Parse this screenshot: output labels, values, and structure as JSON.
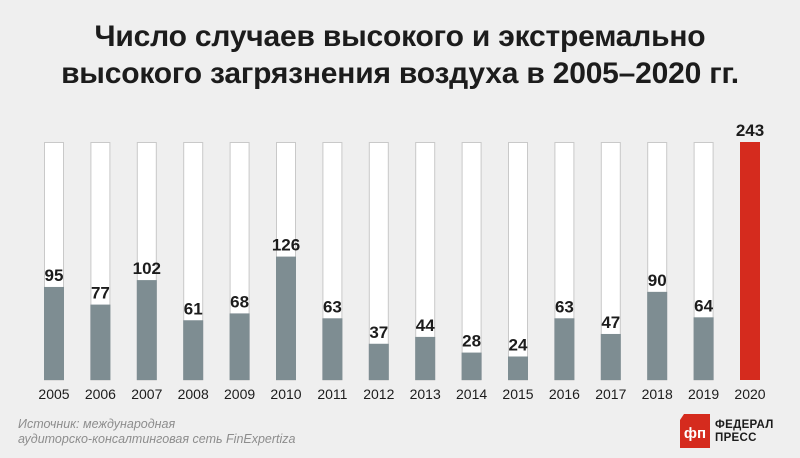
{
  "title_line1": "Число случаев высокого и экстремально",
  "title_line2": "высокого загрязнения воздуха в 2005–2020 гг.",
  "source_line1": "Источник: международная",
  "source_line2": "аудиторско-консалтинговая сеть FinExpertiza",
  "logo": {
    "line1": "ФЕДЕРАЛ",
    "line2": "ПРЕСС",
    "mark": "фп"
  },
  "colors": {
    "bar": "#7e8d92",
    "highlight": "#d52b1e",
    "track": "#ffffff",
    "track_border": "#c9c9c9",
    "text": "#1c1c1c"
  },
  "chart_data": {
    "type": "bar",
    "categories": [
      "2005",
      "2006",
      "2007",
      "2008",
      "2009",
      "2010",
      "2011",
      "2012",
      "2013",
      "2014",
      "2015",
      "2016",
      "2017",
      "2018",
      "2019",
      "2020"
    ],
    "values": [
      95,
      77,
      102,
      61,
      68,
      126,
      63,
      37,
      44,
      28,
      24,
      63,
      47,
      90,
      64,
      243
    ],
    "highlight_category": "2020",
    "ylim": [
      0,
      243
    ],
    "data_labels": true,
    "grid": false,
    "legend": "none"
  }
}
